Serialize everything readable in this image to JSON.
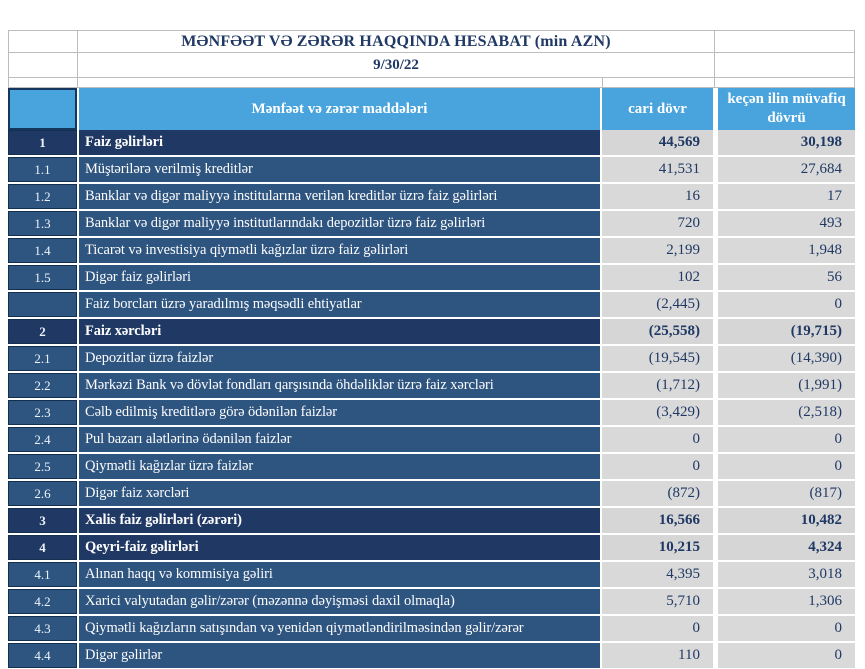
{
  "page": {
    "title": "MƏNFƏƏT VƏ ZƏRƏR HAQQINDA HESABAT (min AZN)",
    "date": "9/30/22"
  },
  "table": {
    "columns": {
      "items": "Mənfəət və zərər maddələri",
      "current": "cari dövr",
      "previous": "keçən ilin müvafiq dövrü"
    },
    "rows": [
      {
        "num": "1",
        "label": "Faiz  gəlirləri",
        "current": "44,569",
        "previous": "30,198",
        "bold": true
      },
      {
        "num": "1.1",
        "label": "Müştərilərə verilmiş kreditlər",
        "current": "41,531",
        "previous": "27,684",
        "bold": false
      },
      {
        "num": "1.2",
        "label": "Banklar və digər maliyyə institularına verilən kreditlər üzrə faiz gəlirləri",
        "current": "16",
        "previous": "17",
        "bold": false
      },
      {
        "num": "1.3",
        "label": "Banklar və digər maliyyə institutlarındakı depozitlər üzrə faiz gəlirləri",
        "current": "720",
        "previous": "493",
        "bold": false
      },
      {
        "num": "1.4",
        "label": "Ticarət və investisiya qiymətli kağızlar üzrə faiz gəlirləri",
        "current": "2,199",
        "previous": "1,948",
        "bold": false
      },
      {
        "num": "1.5",
        "label": "Digər faiz gəlirləri",
        "current": "102",
        "previous": "56",
        "bold": false
      },
      {
        "num": "",
        "label": "Faiz borcları üzrə yaradılmış məqsədli ehtiyatlar",
        "current": "(2,445)",
        "previous": "0",
        "bold": false
      },
      {
        "num": "2",
        "label": "Faiz xərcləri",
        "current": "(25,558)",
        "previous": "(19,715)",
        "bold": true
      },
      {
        "num": "2.1",
        "label": "Depozitlər üzrə faizlər",
        "current": "(19,545)",
        "previous": "(14,390)",
        "bold": false
      },
      {
        "num": "2.2",
        "label": "Mərkəzi Bank və dövlət fondları qarşısında öhdəliklər üzrə faiz xərcləri",
        "current": "(1,712)",
        "previous": "(1,991)",
        "bold": false
      },
      {
        "num": "2.3",
        "label": "Cəlb edilmiş kreditlərə görə ödənilən faizlər",
        "current": "(3,429)",
        "previous": "(2,518)",
        "bold": false
      },
      {
        "num": "2.4",
        "label": "Pul bazarı alətlərinə ödənilən faizlər",
        "current": "0",
        "previous": "0",
        "bold": false
      },
      {
        "num": "2.5",
        "label": "Qiymətli kağızlar üzrə faizlər",
        "current": "0",
        "previous": "0",
        "bold": false
      },
      {
        "num": "2.6",
        "label": "Digər faiz xərcləri",
        "current": "(872)",
        "previous": "(817)",
        "bold": false
      },
      {
        "num": "3",
        "label": "Xalis faiz gəlirləri (zərəri)",
        "current": "16,566",
        "previous": "10,482",
        "bold": true
      },
      {
        "num": "4",
        "label": "Qeyri-faiz gəlirləri",
        "current": "10,215",
        "previous": "4,324",
        "bold": true
      },
      {
        "num": "4.1",
        "label": "Alınan haqq və kommisiya gəliri",
        "current": "4,395",
        "previous": "3,018",
        "bold": false
      },
      {
        "num": "4.2",
        "label": "Xarici valyutadan gəlir/zərər (məzənnə dəyişməsi daxil olmaqla)",
        "current": "5,710",
        "previous": "1,306",
        "bold": false
      },
      {
        "num": "4.3",
        "label": "Qiymətli kağızların satışından və yenidən qiymətləndirilməsindən gəlir/zərər",
        "current": "0",
        "previous": "0",
        "bold": false
      },
      {
        "num": "4.4",
        "label": "Digər gəlirlər",
        "current": "110",
        "previous": "0",
        "bold": false
      }
    ]
  },
  "colors": {
    "header_blue": "#49A3DC",
    "row_navy": "#2E5480",
    "row_navy_bold": "#1F3864",
    "value_bg": "#D9D9D9",
    "value_bg_bold": "#D6D6D6",
    "value_text": "#1F3864",
    "border_gray": "#BDBDBD",
    "num_border": "#13304F",
    "header_border": "#16375D"
  }
}
